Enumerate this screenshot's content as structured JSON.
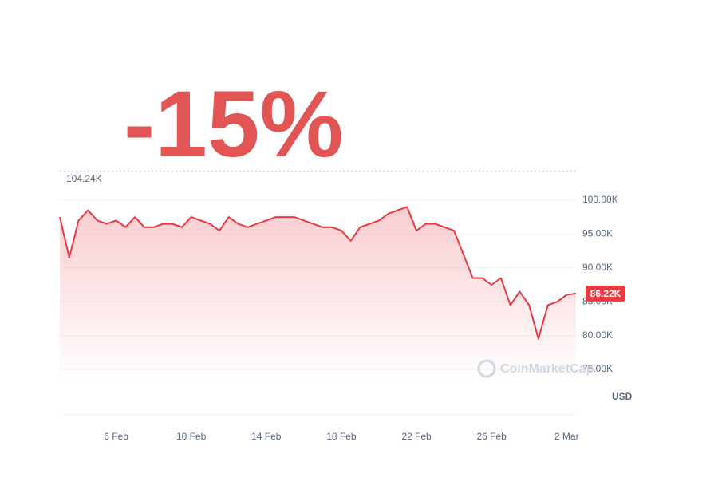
{
  "chart_data": {
    "type": "line",
    "headline": "-15%",
    "watermark": "CoinMarketCap",
    "unit": "USD",
    "color": "#ea3943",
    "categories": [
      null,
      null,
      null,
      null,
      null,
      null,
      "6 Feb",
      null,
      null,
      null,
      null,
      null,
      null,
      null,
      "10 Feb",
      null,
      null,
      null,
      null,
      null,
      null,
      null,
      "14 Feb",
      null,
      null,
      null,
      null,
      null,
      null,
      null,
      "18 Feb",
      null,
      null,
      null,
      null,
      null,
      null,
      null,
      "22 Feb",
      null,
      null,
      null,
      null,
      null,
      null,
      null,
      "26 Feb",
      null,
      null,
      null,
      null,
      null,
      null,
      null,
      "2 Mar",
      null
    ],
    "values": [
      97.5,
      91.5,
      97.0,
      98.5,
      97.0,
      96.5,
      97.0,
      96.0,
      97.5,
      96.0,
      96.0,
      96.5,
      96.5,
      96.0,
      97.5,
      97.0,
      96.5,
      95.5,
      97.5,
      96.5,
      96.0,
      96.5,
      97.0,
      97.5,
      97.5,
      97.5,
      97.0,
      96.5,
      96.0,
      96.0,
      95.5,
      94.0,
      96.0,
      96.5,
      97.0,
      98.0,
      98.5,
      99.0,
      95.5,
      96.5,
      96.5,
      96.0,
      95.5,
      92.0,
      88.5,
      88.5,
      87.5,
      88.5,
      84.5,
      86.5,
      84.5,
      79.5,
      84.5,
      85.0,
      86.0,
      86.22
    ],
    "ylim": [
      73,
      106
    ],
    "yticks": [
      {
        "value": 75,
        "label": "75.00K"
      },
      {
        "value": 80,
        "label": "80.00K"
      },
      {
        "value": 85,
        "label": "85.00K"
      },
      {
        "value": 90,
        "label": "90.00K"
      },
      {
        "value": 95,
        "label": "95.00K"
      },
      {
        "value": 100,
        "label": "100.00K"
      }
    ],
    "high": {
      "value": 104.24,
      "label": "104.24K"
    },
    "current": {
      "value": 86.22,
      "label": "86.22K"
    },
    "grid": true
  }
}
